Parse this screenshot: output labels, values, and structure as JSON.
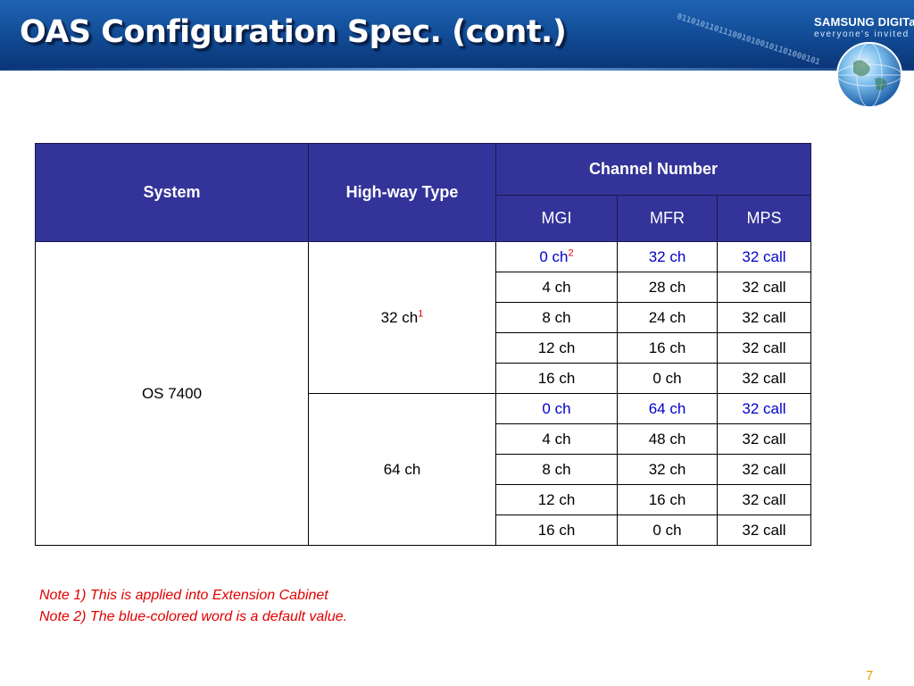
{
  "slide": {
    "title": "OAS Configuration Spec. (cont.)",
    "logo_brand": "SAMSUNG DIGITall",
    "logo_tagline": "everyone's invited",
    "binary_text": "0110101101110010100101101000101",
    "page_number": "7"
  },
  "table": {
    "headers": {
      "system": "System",
      "highway_type": "High-way Type",
      "channel_number": "Channel Number",
      "mgi": "MGI",
      "mfr": "MFR",
      "mps": "MPS"
    },
    "system": "OS 7400",
    "groups": [
      {
        "highway": "32 ch",
        "highway_note": "1",
        "rows": [
          {
            "mgi": "0 ch",
            "mgi_note": "2",
            "mfr": "32 ch",
            "mps": "32 call",
            "is_default": true
          },
          {
            "mgi": "4 ch",
            "mfr": "28 ch",
            "mps": "32 call",
            "is_default": false
          },
          {
            "mgi": "8 ch",
            "mfr": "24 ch",
            "mps": "32 call",
            "is_default": false
          },
          {
            "mgi": "12 ch",
            "mfr": "16 ch",
            "mps": "32 call",
            "is_default": false
          },
          {
            "mgi": "16 ch",
            "mfr": "0 ch",
            "mps": "32 call",
            "is_default": false
          }
        ]
      },
      {
        "highway": "64 ch",
        "rows": [
          {
            "mgi": "0 ch",
            "mfr": "64 ch",
            "mps": "32 call",
            "is_default": true
          },
          {
            "mgi": "4 ch",
            "mfr": "48 ch",
            "mps": "32 call",
            "is_default": false
          },
          {
            "mgi": "8 ch",
            "mfr": "32 ch",
            "mps": "32 call",
            "is_default": false
          },
          {
            "mgi": "12 ch",
            "mfr": "16 ch",
            "mps": "32 call",
            "is_default": false
          },
          {
            "mgi": "16 ch",
            "mfr": "0 ch",
            "mps": "32 call",
            "is_default": false
          }
        ]
      }
    ]
  },
  "notes": [
    "Note 1) This is applied into Extension Cabinet",
    "Note 2) The blue-colored word is a default value."
  ],
  "colors": {
    "header_bg": "#333399",
    "default_value": "#0000cc",
    "note_text": "#e00000",
    "page_number": "#e0a000"
  }
}
